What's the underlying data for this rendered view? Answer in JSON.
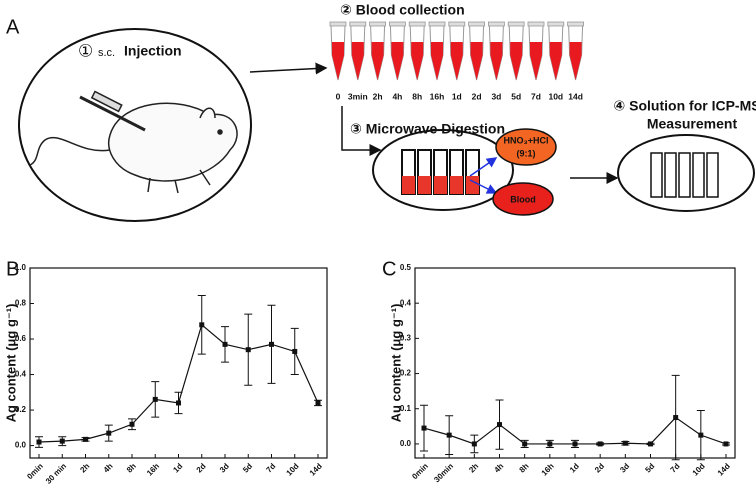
{
  "panel_labels": {
    "a": "A",
    "b": "B",
    "c": "C"
  },
  "diagram": {
    "step1_number": "①",
    "step1_route": "s.c.",
    "step1_label": "Injection",
    "step2": "② Blood collection",
    "times": [
      "0",
      "3min",
      "2h",
      "4h",
      "8h",
      "16h",
      "1d",
      "2d",
      "3d",
      "5d",
      "7d",
      "10d",
      "14d"
    ],
    "step3": "③ Microwave Digestion",
    "acid": "HNO₃+HCl",
    "ratio": "(9:1)",
    "blood": "Blood",
    "step4_line1": "④ Solution for ICP-MS",
    "step4_line2": "Measurement"
  },
  "chart_data": [
    {
      "type": "line",
      "y_label": "Ag content (μg g⁻¹)",
      "color": "#111111",
      "categories": [
        "0min",
        "30 min",
        "2h",
        "4h",
        "8h",
        "16h",
        "1d",
        "2d",
        "3d",
        "5d",
        "7d",
        "10d",
        "14d"
      ],
      "values": [
        0.02,
        0.025,
        0.035,
        0.07,
        0.12,
        0.26,
        0.24,
        0.68,
        0.57,
        0.54,
        0.57,
        0.53,
        0.24
      ],
      "errors": [
        0.03,
        0.025,
        0.01,
        0.045,
        0.03,
        0.1,
        0.06,
        0.165,
        0.1,
        0.2,
        0.22,
        0.13,
        0.015
      ],
      "ylim": [
        -0.07,
        1.0
      ],
      "yticks": [
        {
          "value": 0,
          "label": "0.0"
        },
        {
          "value": 0.2,
          "label": "0.2"
        },
        {
          "value": 0.4,
          "label": "0.4"
        },
        {
          "value": 0.6,
          "label": "0.6"
        },
        {
          "value": 0.8,
          "label": "0.8"
        },
        {
          "value": 1.0,
          "label": "1.0"
        }
      ]
    },
    {
      "type": "line",
      "y_label": "Au content (μg g⁻¹)",
      "color": "#111111",
      "categories": [
        "0min",
        "30min",
        "2h",
        "4h",
        "8h",
        "16h",
        "1d",
        "2d",
        "3d",
        "5d",
        "7d",
        "10d",
        "14d"
      ],
      "values": [
        0.045,
        0.025,
        0.0,
        0.055,
        0.0,
        0.0,
        0.0,
        0.0,
        0.002,
        0.0,
        0.075,
        0.025,
        0.0
      ],
      "errors": [
        0.065,
        0.055,
        0.025,
        0.07,
        0.01,
        0.01,
        0.01,
        0.003,
        0.005,
        0.002,
        0.12,
        0.07,
        0.003
      ],
      "ylim": [
        -0.04,
        0.5
      ],
      "yticks": [
        {
          "value": 0,
          "label": "0.0"
        },
        {
          "value": 0.1,
          "label": "0.1"
        },
        {
          "value": 0.2,
          "label": "0.2"
        },
        {
          "value": 0.3,
          "label": "0.3"
        },
        {
          "value": 0.4,
          "label": "0.4"
        },
        {
          "value": 0.5,
          "label": "0.5"
        }
      ]
    }
  ]
}
